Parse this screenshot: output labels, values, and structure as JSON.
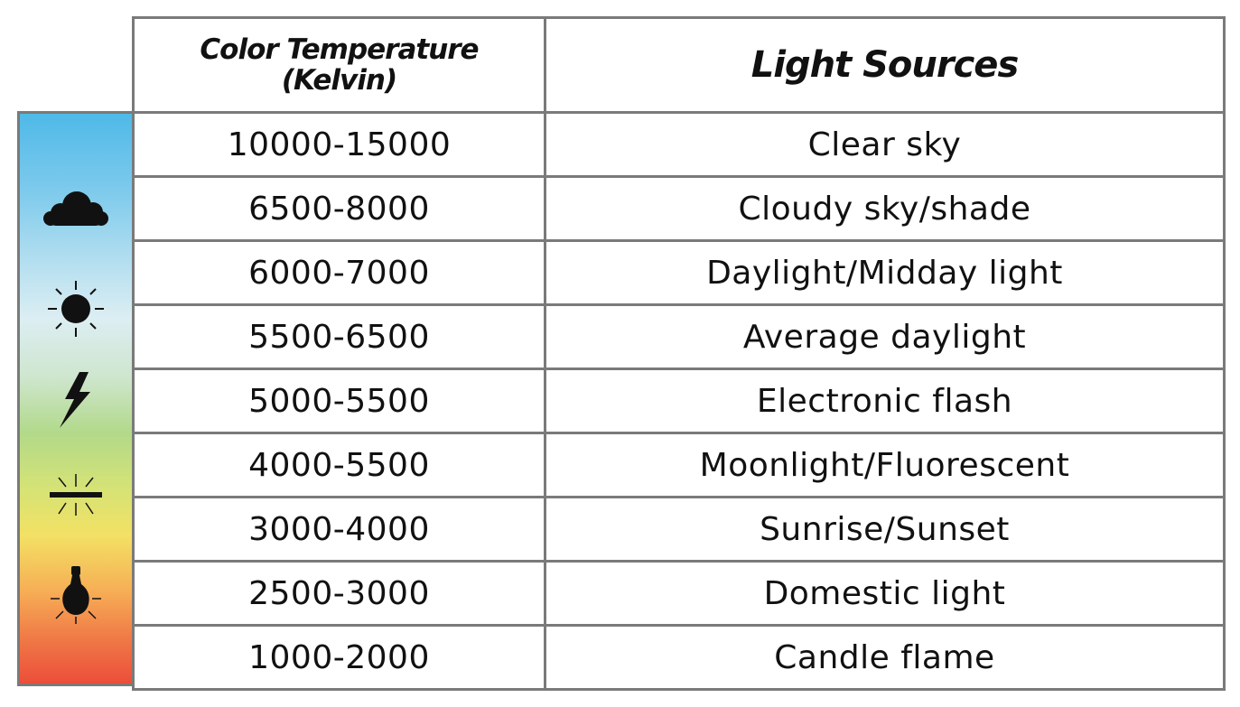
{
  "header": {
    "temperature_line1": "Color Temperature",
    "temperature_line2": "(Kelvin)",
    "sources": "Light Sources"
  },
  "rows": [
    {
      "range": "10000-15000",
      "source": "Clear sky"
    },
    {
      "range": "6500-8000",
      "source": "Cloudy sky/shade"
    },
    {
      "range": "6000-7000",
      "source": "Daylight/Midday light"
    },
    {
      "range": "5500-6500",
      "source": "Average daylight"
    },
    {
      "range": "5000-5500",
      "source": "Electronic flash"
    },
    {
      "range": "4000-5500",
      "source": "Moonlight/Fluorescent"
    },
    {
      "range": "3000-4000",
      "source": "Sunrise/Sunset"
    },
    {
      "range": "2500-3000",
      "source": "Domestic light"
    },
    {
      "range": "1000-2000",
      "source": "Candle flame"
    }
  ],
  "sidebar_icons": [
    "cloud-icon",
    "sun-icon",
    "lightning-bolt-icon",
    "fluorescent-tube-icon",
    "light-bulb-icon"
  ],
  "colors": {
    "gradient_top": "#4fb9e8",
    "gradient_bottom": "#ec4e3a",
    "border": "#7a7a7a",
    "text": "#111111"
  }
}
